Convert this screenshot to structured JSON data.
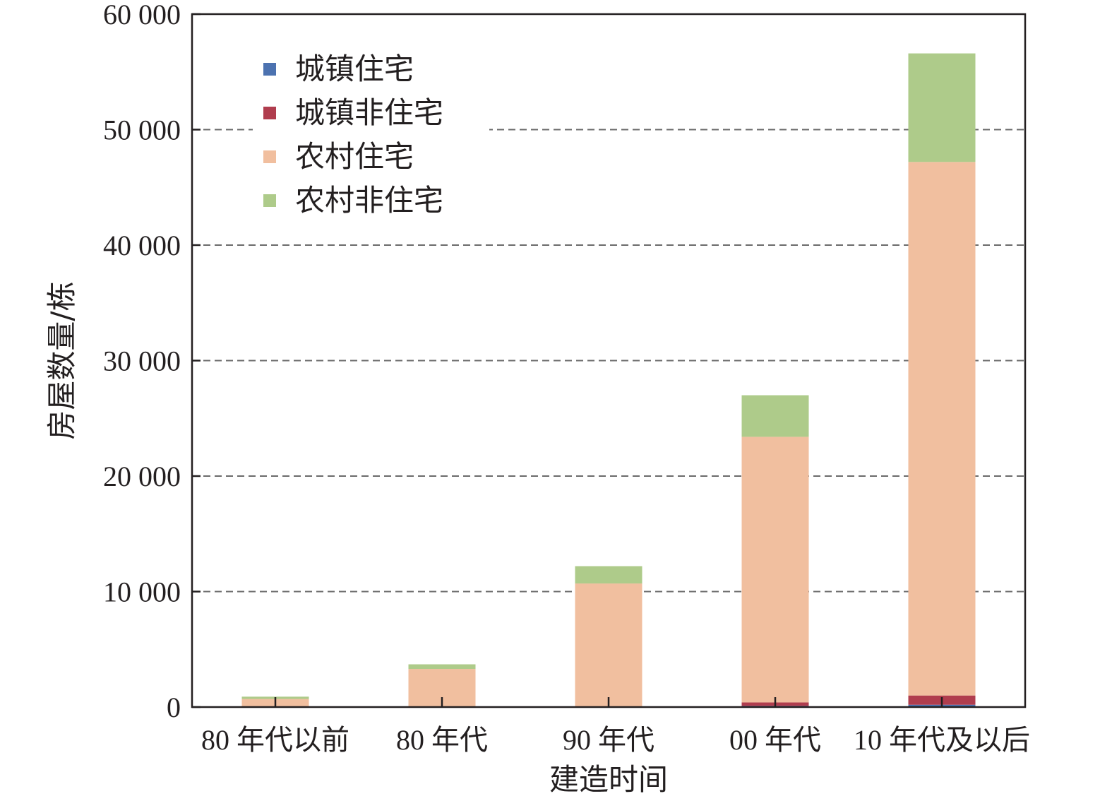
{
  "chart_data": {
    "type": "bar",
    "stacked": true,
    "title": "",
    "xlabel": "建造时间",
    "ylabel": "房屋数量/栋",
    "ylim": [
      0,
      60000
    ],
    "yticks": [
      0,
      10000,
      20000,
      30000,
      40000,
      50000,
      60000
    ],
    "ytick_labels": [
      "0",
      "10 000",
      "20 000",
      "30 000",
      "40 000",
      "50 000",
      "60 000"
    ],
    "grid": "horizontal dashed",
    "legend_position": "top-left",
    "categories": [
      "80 年代以前",
      "80 年代",
      "90 年代",
      "00 年代",
      "10 年代及以后"
    ],
    "series": [
      {
        "name": "城镇住宅",
        "color": "#4c72b0",
        "values": [
          0,
          0,
          0,
          100,
          200
        ]
      },
      {
        "name": "城镇非住宅",
        "color": "#b03d4e",
        "values": [
          0,
          0,
          0,
          300,
          800
        ]
      },
      {
        "name": "农村住宅",
        "color": "#f1bf9f",
        "values": [
          700,
          3300,
          10700,
          23000,
          46200
        ]
      },
      {
        "name": "农村非住宅",
        "color": "#aecb8a",
        "values": [
          200,
          400,
          1500,
          3600,
          9400
        ]
      }
    ]
  }
}
